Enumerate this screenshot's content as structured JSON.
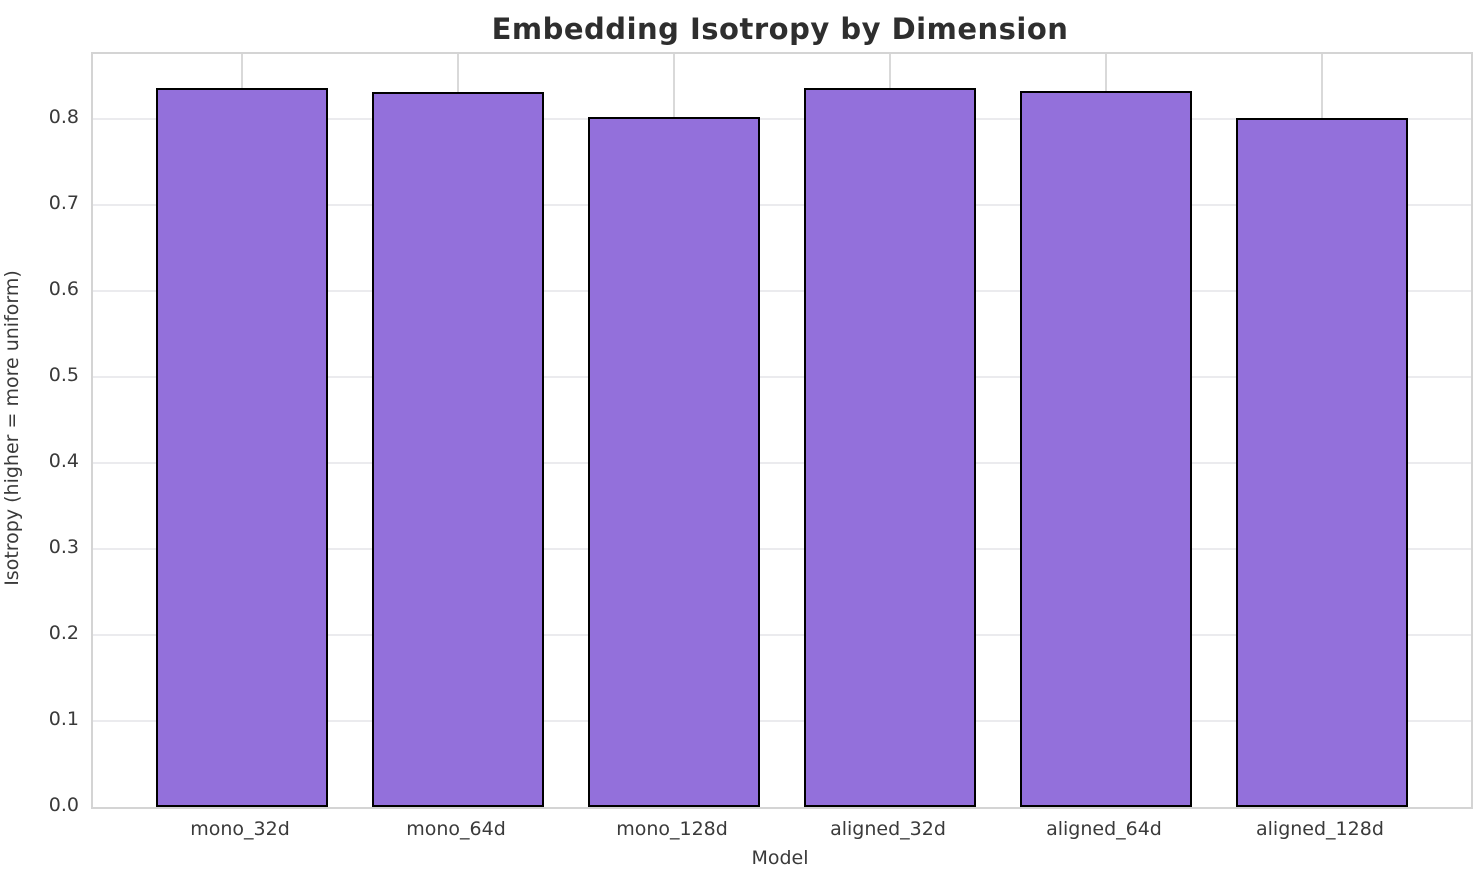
{
  "title": "Embedding Isotropy by Dimension",
  "chart_data": {
    "type": "bar",
    "title": "Embedding Isotropy by Dimension",
    "xlabel": "Model",
    "ylabel": "Isotropy (higher = more uniform)",
    "categories": [
      "mono_32d",
      "mono_64d",
      "mono_128d",
      "aligned_32d",
      "aligned_64d",
      "aligned_128d"
    ],
    "values": [
      0.836,
      0.831,
      0.802,
      0.835,
      0.832,
      0.801
    ],
    "ylim": [
      0,
      0.875
    ],
    "yticks": [
      0.0,
      0.1,
      0.2,
      0.3,
      0.4,
      0.5,
      0.6,
      0.7,
      0.8
    ],
    "ytick_labels": [
      "0.0",
      "0.1",
      "0.2",
      "0.3",
      "0.4",
      "0.5",
      "0.6",
      "0.7",
      "0.8"
    ],
    "grid": true,
    "legend": false,
    "bar_color": "#9370DB",
    "bar_edge_color": "#000000",
    "background_color": "#ffffff",
    "grid_color_horizontal": "#ebebee",
    "grid_color_vertical": "#d9d9d9",
    "spine_color": "#d4d4d4",
    "text_color": "#3a3a3a",
    "title_color": "#2e2e2e"
  }
}
